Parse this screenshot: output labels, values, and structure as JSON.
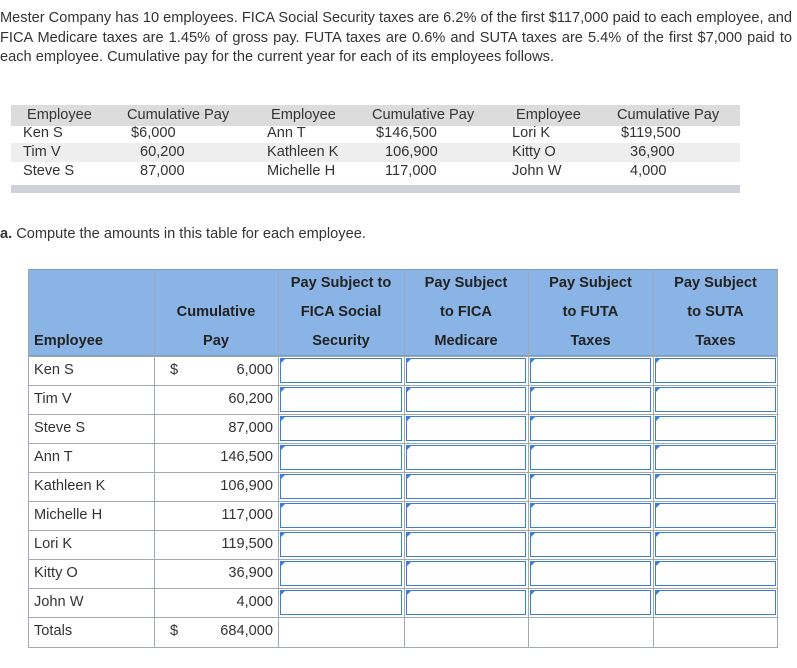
{
  "intro": "Mester Company has 10 employees. FICA Social Security taxes are 6.2% of the first $117,000 paid to each employee, and FICA Medicare taxes are 1.45% of gross pay. FUTA taxes are 0.6% and SUTA taxes are 5.4% of the first $7,000 paid to each employee. Cumulative pay for the current year for each of its employees follows.",
  "info_table": {
    "headers": [
      "Employee",
      "Cumulative Pay",
      "Employee",
      "Cumulative Pay",
      "Employee",
      "Cumulative Pay"
    ],
    "rows": [
      [
        "Ken S",
        "$6,000",
        "Ann T",
        "$146,500",
        "Lori K",
        "$119,500"
      ],
      [
        "Tim V",
        "60,200",
        "Kathleen K",
        "106,900",
        "Kitty O",
        "36,900"
      ],
      [
        "Steve S",
        "87,000",
        "Michelle H",
        "117,000",
        "John W",
        "4,000"
      ]
    ]
  },
  "question": {
    "letter": "a.",
    "text": "Compute the amounts in this table for each employee."
  },
  "grid": {
    "headers": {
      "employee": "Employee",
      "cum_line1": "Cumulative",
      "cum_line2": "Pay",
      "fica_ss": [
        "Pay Subject to",
        "FICA Social",
        "Security"
      ],
      "fica_med": [
        "Pay Subject",
        "to FICA",
        "Medicare"
      ],
      "futa": [
        "Pay Subject",
        "to FUTA",
        "Taxes"
      ],
      "suta": [
        "Pay Subject",
        "to SUTA",
        "Taxes"
      ]
    },
    "currency": "$",
    "rows": [
      {
        "name": "Ken S",
        "pay": "6,000"
      },
      {
        "name": "Tim V",
        "pay": "60,200"
      },
      {
        "name": "Steve S",
        "pay": "87,000"
      },
      {
        "name": "Ann T",
        "pay": "146,500"
      },
      {
        "name": "Kathleen K",
        "pay": "106,900"
      },
      {
        "name": "Michelle H",
        "pay": "117,000"
      },
      {
        "name": "Lori K",
        "pay": "119,500"
      },
      {
        "name": "Kitty O",
        "pay": "36,900"
      },
      {
        "name": "John W",
        "pay": "4,000"
      }
    ],
    "totals": {
      "label": "Totals",
      "pay": "684,000"
    }
  },
  "colors": {
    "header_bg": "#8ab4e6",
    "input_border": "#3a7fd5"
  }
}
